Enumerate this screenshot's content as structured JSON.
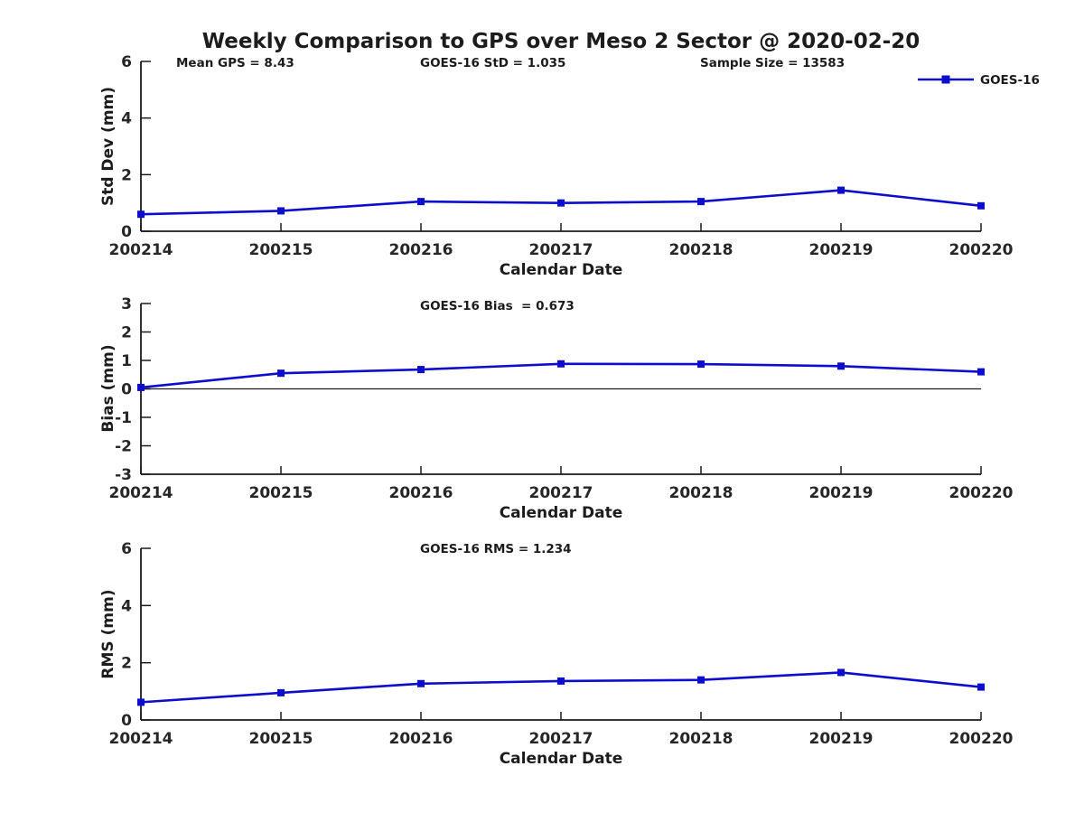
{
  "figure": {
    "title": "Weekly Comparison to GPS over Meso 2 Sector @ 2020-02-20",
    "background": "#ffffff",
    "text_color": "#1c1c1c",
    "axis_color": "#1a1a1a"
  },
  "annotations": {
    "mean_gps": "Mean GPS = 8.43",
    "goes16_std": "GOES-16 StD = 1.035",
    "sample_size": "Sample Size = 13583"
  },
  "legend": {
    "label": "GOES-16",
    "color": "#0d0dcd",
    "marker": "square",
    "position": "top-right"
  },
  "chart_data": [
    {
      "type": "line",
      "subtitle": "",
      "ylabel": "Std Dev (mm)",
      "xlabel": "Calendar Date",
      "categories": [
        "200214",
        "200215",
        "200216",
        "200217",
        "200218",
        "200219",
        "200220"
      ],
      "series": [
        {
          "name": "GOES-16",
          "color": "#0d0dcd",
          "values": [
            0.6,
            0.72,
            1.05,
            1.0,
            1.05,
            1.45,
            0.9
          ]
        }
      ],
      "ylim": [
        0,
        6
      ],
      "yticks": [
        0,
        2,
        4,
        6
      ],
      "grid": false,
      "zero_line": false,
      "legend_position": "top-right"
    },
    {
      "type": "line",
      "subtitle": "GOES-16 Bias  = 0.673",
      "ylabel": "Bias (mm)",
      "xlabel": "Calendar Date",
      "categories": [
        "200214",
        "200215",
        "200216",
        "200217",
        "200218",
        "200219",
        "200220"
      ],
      "series": [
        {
          "name": "GOES-16",
          "color": "#0d0dcd",
          "values": [
            0.05,
            0.55,
            0.68,
            0.88,
            0.87,
            0.8,
            0.6
          ]
        }
      ],
      "ylim": [
        -3,
        3
      ],
      "yticks": [
        -3,
        -2,
        -1,
        0,
        1,
        2,
        3
      ],
      "grid": false,
      "zero_line": true,
      "legend_position": "none"
    },
    {
      "type": "line",
      "subtitle": "GOES-16 RMS = 1.234",
      "ylabel": "RMS (mm)",
      "xlabel": "Calendar Date",
      "categories": [
        "200214",
        "200215",
        "200216",
        "200217",
        "200218",
        "200219",
        "200220"
      ],
      "series": [
        {
          "name": "GOES-16",
          "color": "#0d0dcd",
          "values": [
            0.62,
            0.95,
            1.27,
            1.36,
            1.4,
            1.66,
            1.15
          ]
        }
      ],
      "ylim": [
        0,
        6
      ],
      "yticks": [
        0,
        2,
        4,
        6
      ],
      "grid": false,
      "zero_line": false,
      "legend_position": "none"
    }
  ]
}
